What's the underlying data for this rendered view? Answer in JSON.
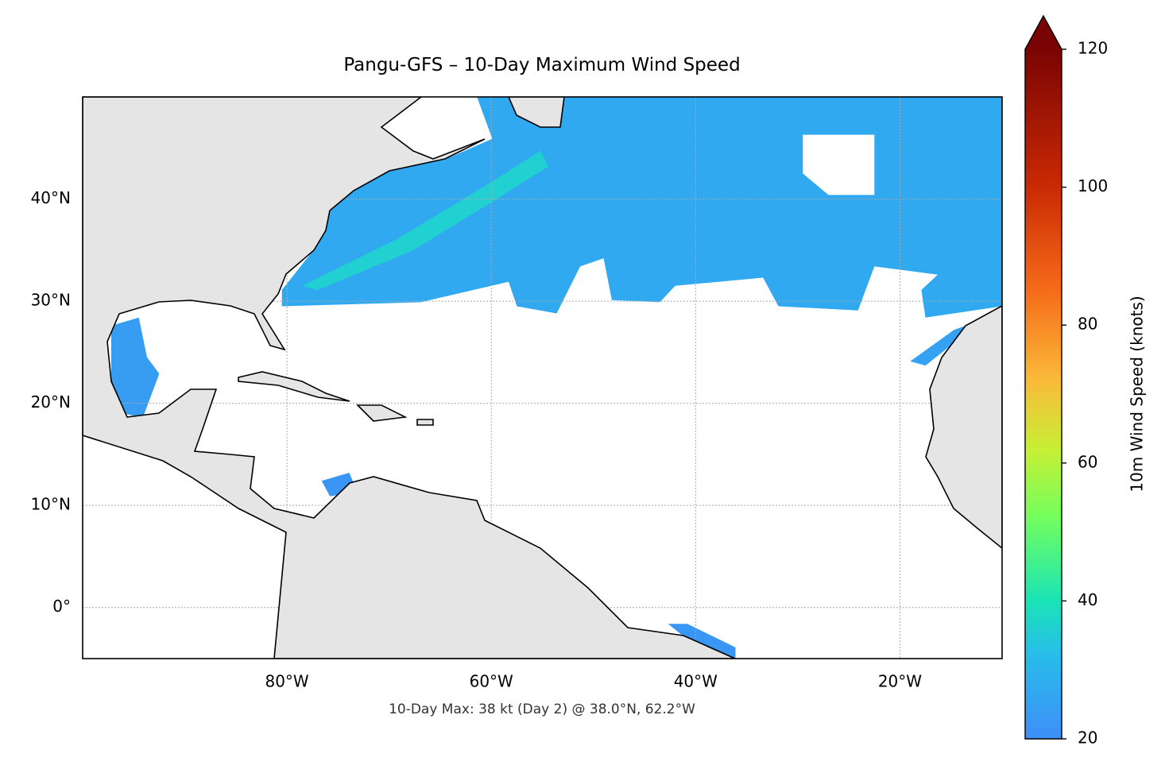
{
  "chart_data": {
    "type": "map",
    "title": "Pangu-GFS – 10-Day Maximum Wind Speed",
    "annotation": "10-Day Max: 38 kt (Day 2) @ 38.0°N, 62.2°W",
    "xlim": [
      -100,
      -10
    ],
    "ylim": [
      -5,
      50
    ],
    "xticks": [
      {
        "value": -80,
        "label": "80°W"
      },
      {
        "value": -60,
        "label": "60°W"
      },
      {
        "value": -40,
        "label": "40°W"
      },
      {
        "value": -20,
        "label": "20°W"
      }
    ],
    "yticks": [
      {
        "value": 0,
        "label": "0°"
      },
      {
        "value": 10,
        "label": "10°N"
      },
      {
        "value": 20,
        "label": "20°N"
      },
      {
        "value": 30,
        "label": "30°N"
      },
      {
        "value": 40,
        "label": "40°N"
      }
    ],
    "grid": true,
    "colorbar": {
      "label": "10m Wind Speed (knots)",
      "lim": [
        20,
        120
      ],
      "ticks": [
        20,
        40,
        60,
        80,
        100,
        120
      ],
      "extend": "max"
    },
    "swaths": [
      {
        "value": 27,
        "rings": [
          [
            [
              -75.8,
              38.9
            ],
            [
              -73.9,
              40.8
            ],
            [
              -70.8,
              42.8
            ],
            [
              -64.5,
              43.9
            ],
            [
              -59.9,
              45.9
            ],
            [
              -61.4,
              50
            ],
            [
              -10,
              50
            ],
            [
              -10,
              29.5
            ],
            [
              -17.5,
              28.4
            ],
            [
              -17.9,
              31.1
            ],
            [
              -16.3,
              32.6
            ],
            [
              -22.5,
              33.4
            ],
            [
              -24.1,
              29.1
            ],
            [
              -31.9,
              29.5
            ],
            [
              -33.4,
              32.3
            ],
            [
              -42.0,
              31.5
            ],
            [
              -43.5,
              29.9
            ],
            [
              -48.2,
              30.1
            ],
            [
              -49.0,
              34.2
            ],
            [
              -51.3,
              33.4
            ],
            [
              -53.6,
              28.8
            ],
            [
              -57.5,
              29.5
            ],
            [
              -58.3,
              31.9
            ],
            [
              -66.9,
              29.9
            ],
            [
              -80.5,
              29.5
            ],
            [
              -80.5,
              31.1
            ],
            [
              -77.4,
              35.0
            ]
          ],
          [
            [
              -29.5,
              46.3
            ],
            [
              -22.5,
              46.3
            ],
            [
              -22.5,
              40.4
            ],
            [
              -27.0,
              40.4
            ],
            [
              -29.5,
              42.5
            ]
          ]
        ]
      },
      {
        "value": 36,
        "rings": [
          [
            [
              -78.5,
              31.5
            ],
            [
              -69.2,
              36.1
            ],
            [
              -61.4,
              40.8
            ],
            [
              -55.2,
              44.7
            ],
            [
              -54.4,
              43.2
            ],
            [
              -60.6,
              39.3
            ],
            [
              -67.6,
              35.0
            ],
            [
              -77.0,
              31.1
            ]
          ]
        ]
      },
      {
        "value": 24,
        "rings": [
          [
            [
              -97.2,
              27.6
            ],
            [
              -94.5,
              28.4
            ],
            [
              -93.7,
              24.5
            ],
            [
              -92.5,
              22.9
            ],
            [
              -94.1,
              18.6
            ],
            [
              -96.0,
              19.0
            ],
            [
              -97.2,
              22.1
            ]
          ]
        ]
      },
      {
        "value": 25,
        "rings": [
          [
            [
              -19.0,
              24.1
            ],
            [
              -14.7,
              27.2
            ],
            [
              -12.4,
              28.0
            ],
            [
              -13.6,
              26.8
            ],
            [
              -17.5,
              23.7
            ]
          ]
        ]
      },
      {
        "value": 22,
        "rings": [
          [
            [
              -76.6,
              12.4
            ],
            [
              -73.9,
              13.2
            ],
            [
              -73.1,
              11.3
            ],
            [
              -75.8,
              10.9
            ]
          ]
        ]
      },
      {
        "value": 22,
        "rings": [
          [
            [
              -42.7,
              -1.6
            ],
            [
              -40.8,
              -1.6
            ],
            [
              -36.1,
              -3.9
            ],
            [
              -36.1,
              -5
            ],
            [
              -38.1,
              -5
            ],
            [
              -41.2,
              -2.8
            ]
          ]
        ]
      }
    ]
  }
}
